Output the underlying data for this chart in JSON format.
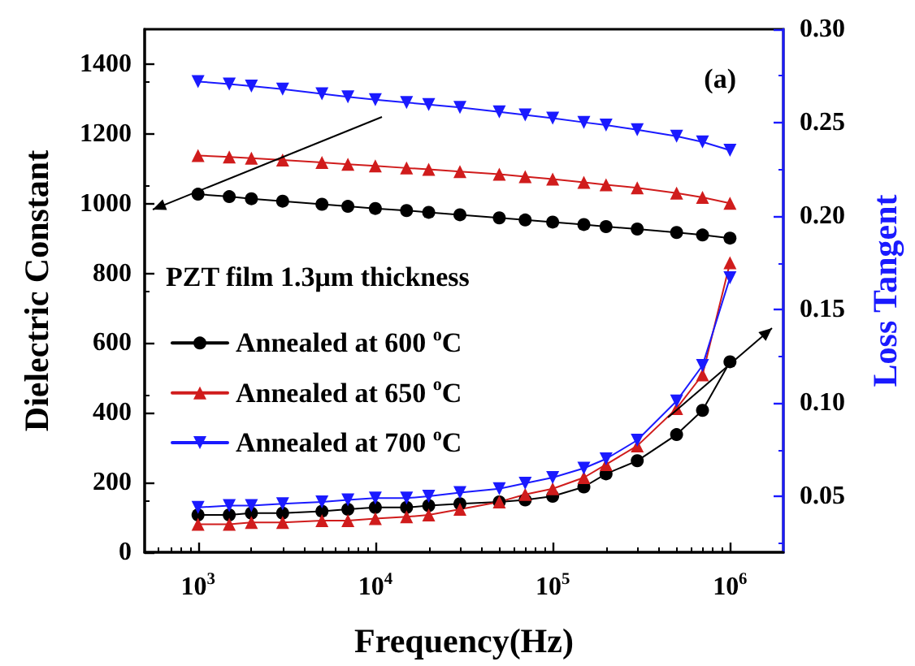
{
  "chart_data": {
    "type": "line",
    "xlabel": "Frequency(Hz)",
    "ylabel": "Dielectric Constant",
    "y2label": "Loss Tangent",
    "legend_title": "PZT film 1.3μm thickness",
    "annotations": [
      "(a)"
    ],
    "log": "x",
    "grid": false,
    "legend": "left",
    "xlim": [
      500,
      2000000
    ],
    "xticks": [
      {
        "value": 1000,
        "label": "10$^{3}$"
      },
      {
        "value": 10000,
        "label": "10$^{4}$"
      },
      {
        "value": 100000,
        "label": "10$^{5}$"
      },
      {
        "value": 1000000,
        "label": "10$^{6}$"
      }
    ],
    "ylim": [
      0,
      1500
    ],
    "yticks": [
      0,
      200,
      400,
      600,
      800,
      1000,
      1200,
      1400
    ],
    "y2lim": [
      0.02,
      0.3
    ],
    "y2ticks": [
      {
        "value": 0.05,
        "label": "0.05"
      },
      {
        "value": 0.1,
        "label": "0.10"
      },
      {
        "value": 0.15,
        "label": "0.15"
      },
      {
        "value": 0.2,
        "label": "0.20"
      },
      {
        "value": 0.25,
        "label": "0.25"
      },
      {
        "value": 0.3,
        "label": "0.30"
      }
    ],
    "x": [
      1000,
      1500,
      2000,
      3000,
      5000,
      7000,
      10000,
      15000,
      20000,
      30000,
      50000,
      70000,
      100000,
      150000,
      200000,
      300000,
      500000,
      700000,
      1000000
    ],
    "series": [
      {
        "name": "Annealed at 600 $^{o}$C",
        "color": "#000000",
        "marker": "circle",
        "values": [
          1027,
          1020,
          1014,
          1007,
          998,
          992,
          986,
          980,
          975,
          968,
          959,
          953,
          947,
          940,
          934,
          927,
          917,
          910,
          901
        ]
      },
      {
        "name": "Annealed at 650 $^{o}$C",
        "color": "#d01c1c",
        "marker": "triangle",
        "values": [
          1138,
          1134,
          1130,
          1125,
          1118,
          1113,
          1108,
          1102,
          1098,
          1092,
          1084,
          1077,
          1070,
          1061,
          1054,
          1045,
          1030,
          1018,
          1001
        ]
      },
      {
        "name": "Annealed at 700 $^{o}$C",
        "color": "#1a1aff",
        "marker": "triangle-down",
        "values": [
          1350,
          1343,
          1337,
          1328,
          1315,
          1306,
          1298,
          1290,
          1284,
          1276,
          1263,
          1254,
          1245,
          1233,
          1225,
          1212,
          1193,
          1177,
          1153
        ]
      },
      {
        "color": "#000000",
        "marker": "circle",
        "axis": "y2",
        "values": [
          0.04,
          0.04,
          0.041,
          0.041,
          0.042,
          0.043,
          0.044,
          0.044,
          0.045,
          0.046,
          0.047,
          0.048,
          0.05,
          0.055,
          0.062,
          0.069,
          0.083,
          0.096,
          0.122
        ]
      },
      {
        "color": "#d01c1c",
        "marker": "triangle",
        "axis": "y2",
        "values": [
          0.035,
          0.035,
          0.036,
          0.036,
          0.037,
          0.037,
          0.038,
          0.039,
          0.04,
          0.043,
          0.047,
          0.051,
          0.054,
          0.06,
          0.067,
          0.077,
          0.097,
          0.115,
          0.175
        ]
      },
      {
        "color": "#1a1aff",
        "marker": "triangle-down",
        "axis": "y2",
        "values": [
          0.044,
          0.045,
          0.045,
          0.046,
          0.047,
          0.048,
          0.049,
          0.049,
          0.05,
          0.052,
          0.054,
          0.057,
          0.06,
          0.065,
          0.07,
          0.08,
          0.101,
          0.12,
          0.167
        ]
      }
    ]
  }
}
